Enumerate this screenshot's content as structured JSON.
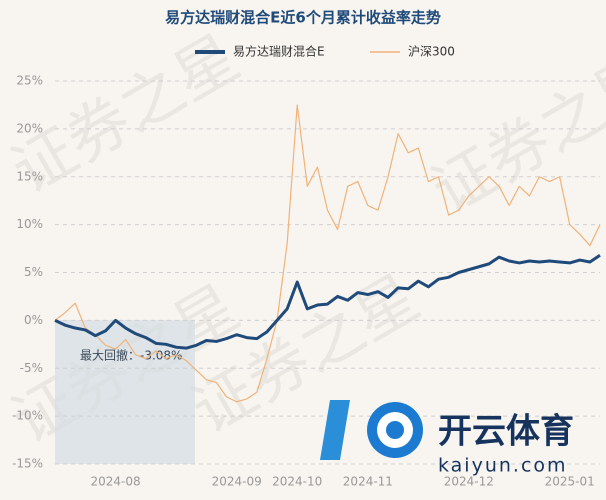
{
  "chart_data": {
    "type": "line",
    "title": "易方达瑞财混合E近6个月累计收益率走势",
    "categories": [
      null,
      null,
      null,
      null,
      null,
      null,
      "2024-08",
      null,
      null,
      null,
      null,
      null,
      null,
      null,
      null,
      null,
      null,
      null,
      "2024-09",
      null,
      null,
      null,
      null,
      null,
      "2024-10",
      null,
      null,
      null,
      null,
      null,
      null,
      "2024-11",
      null,
      null,
      null,
      null,
      null,
      null,
      null,
      null,
      null,
      "2024-12",
      null,
      null,
      null,
      null,
      null,
      null,
      null,
      null,
      null,
      "2025-01",
      null,
      null,
      null
    ],
    "series": [
      {
        "name": "易方达瑞财混合E",
        "color": "#1f4a7a",
        "values": [
          0,
          -0.5,
          -0.8,
          -1,
          -1.6,
          -1.1,
          0,
          -0.8,
          -1.4,
          -1.8,
          -2.4,
          -2.5,
          -2.8,
          -2.9,
          -2.6,
          -2.1,
          -2.2,
          -1.9,
          -1.5,
          -1.8,
          -1.9,
          -1.2,
          0,
          1.2,
          4,
          1.2,
          1.6,
          1.7,
          2.5,
          2.1,
          2.9,
          2.7,
          3,
          2.4,
          3.4,
          3.3,
          4.1,
          3.5,
          4.3,
          4.5,
          5,
          5.3,
          5.6,
          5.9,
          6.6,
          6.2,
          6,
          6.2,
          6.1,
          6.2,
          6.1,
          6,
          6.3,
          6.1,
          6.8
        ]
      },
      {
        "name": "沪深300",
        "color": "#f0b27a",
        "values": [
          0,
          0.8,
          1.8,
          -0.8,
          -1.5,
          -2.6,
          -3,
          -2,
          -3.6,
          -4,
          -3.2,
          -4,
          -3.6,
          -4.2,
          -5.2,
          -6.2,
          -6.5,
          -8,
          -8.5,
          -8.2,
          -7.5,
          -4,
          0,
          8,
          22.5,
          14,
          16,
          11.5,
          9.5,
          14,
          14.5,
          12,
          11.5,
          15,
          19.5,
          17.5,
          18,
          14.5,
          15,
          11,
          11.5,
          13,
          14,
          15,
          14,
          12,
          14,
          13,
          15,
          14.5,
          15,
          10,
          9,
          7.8,
          10
        ]
      }
    ],
    "ylim": [
      -15,
      25
    ],
    "yticks": [
      {
        "value": -15,
        "label": "-15%"
      },
      {
        "value": -10,
        "label": "-10%"
      },
      {
        "value": -5,
        "label": "-5%"
      },
      {
        "value": 0,
        "label": "0%"
      },
      {
        "value": 5,
        "label": "5%"
      },
      {
        "value": 10,
        "label": "10%"
      },
      {
        "value": 15,
        "label": "15%"
      },
      {
        "value": 20,
        "label": "20%"
      },
      {
        "value": 25,
        "label": "25%"
      }
    ],
    "grid": true,
    "annotation": "最大回撤：-3.08%",
    "watermark": "证券之星",
    "logo": {
      "name": "开云体育",
      "url": "kaiyun.com"
    }
  }
}
